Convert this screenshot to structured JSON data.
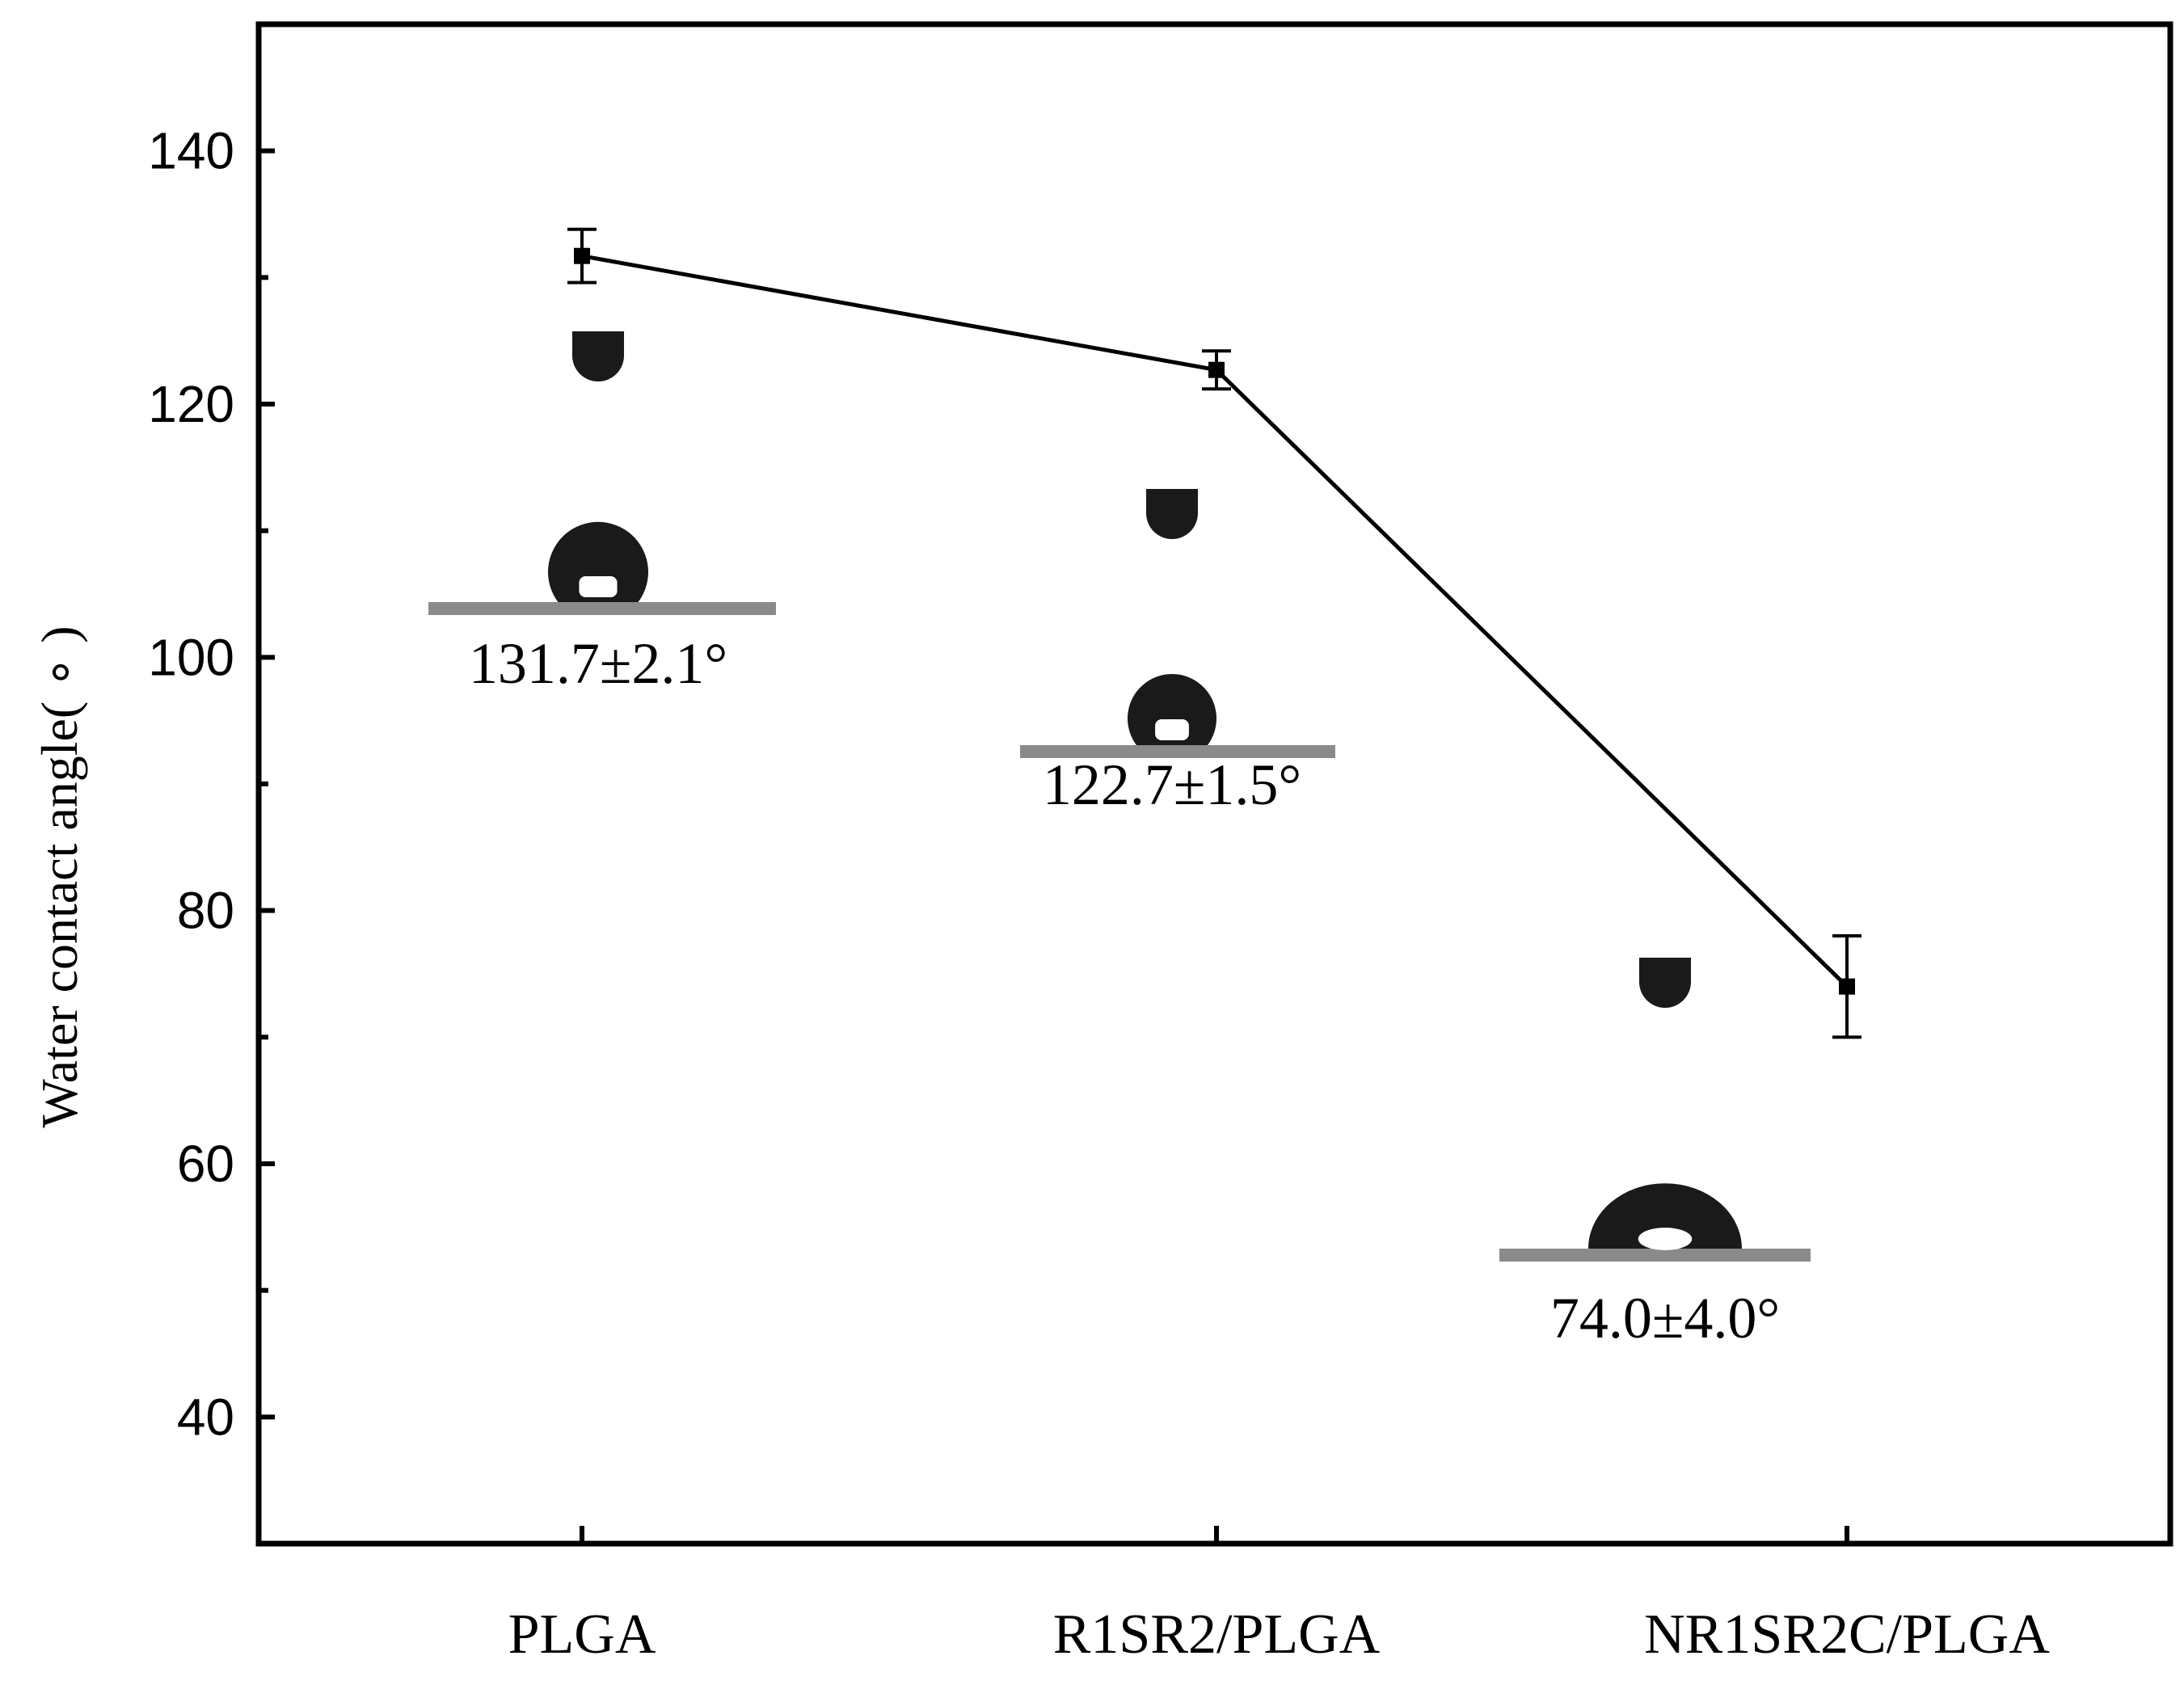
{
  "chart_data": {
    "type": "line",
    "categories": [
      "PLGA",
      "R1SR2/PLGA",
      "NR1SR2C/PLGA"
    ],
    "series": [
      {
        "values": [
          131.7,
          122.7,
          74.0
        ],
        "errors": [
          2.1,
          1.5,
          4.0
        ]
      }
    ],
    "title": "",
    "xlabel": "",
    "ylabel": "Water contact angle( ∘ )",
    "ylim": [
      30,
      150
    ],
    "yticks": [
      40,
      60,
      80,
      100,
      120,
      140
    ],
    "minor_ytick_step": 10,
    "grid": false,
    "legend": "none",
    "annotations": [
      "131.7±2.1°",
      "122.7±1.5°",
      "74.0±4.0°"
    ],
    "insets": [
      "water-droplet-photo",
      "water-droplet-photo",
      "water-droplet-photo"
    ],
    "colors": {
      "line": "#000000",
      "axis": "#000000",
      "droplet": "#1a1a1a",
      "substrate": "#8a8a8a"
    }
  }
}
